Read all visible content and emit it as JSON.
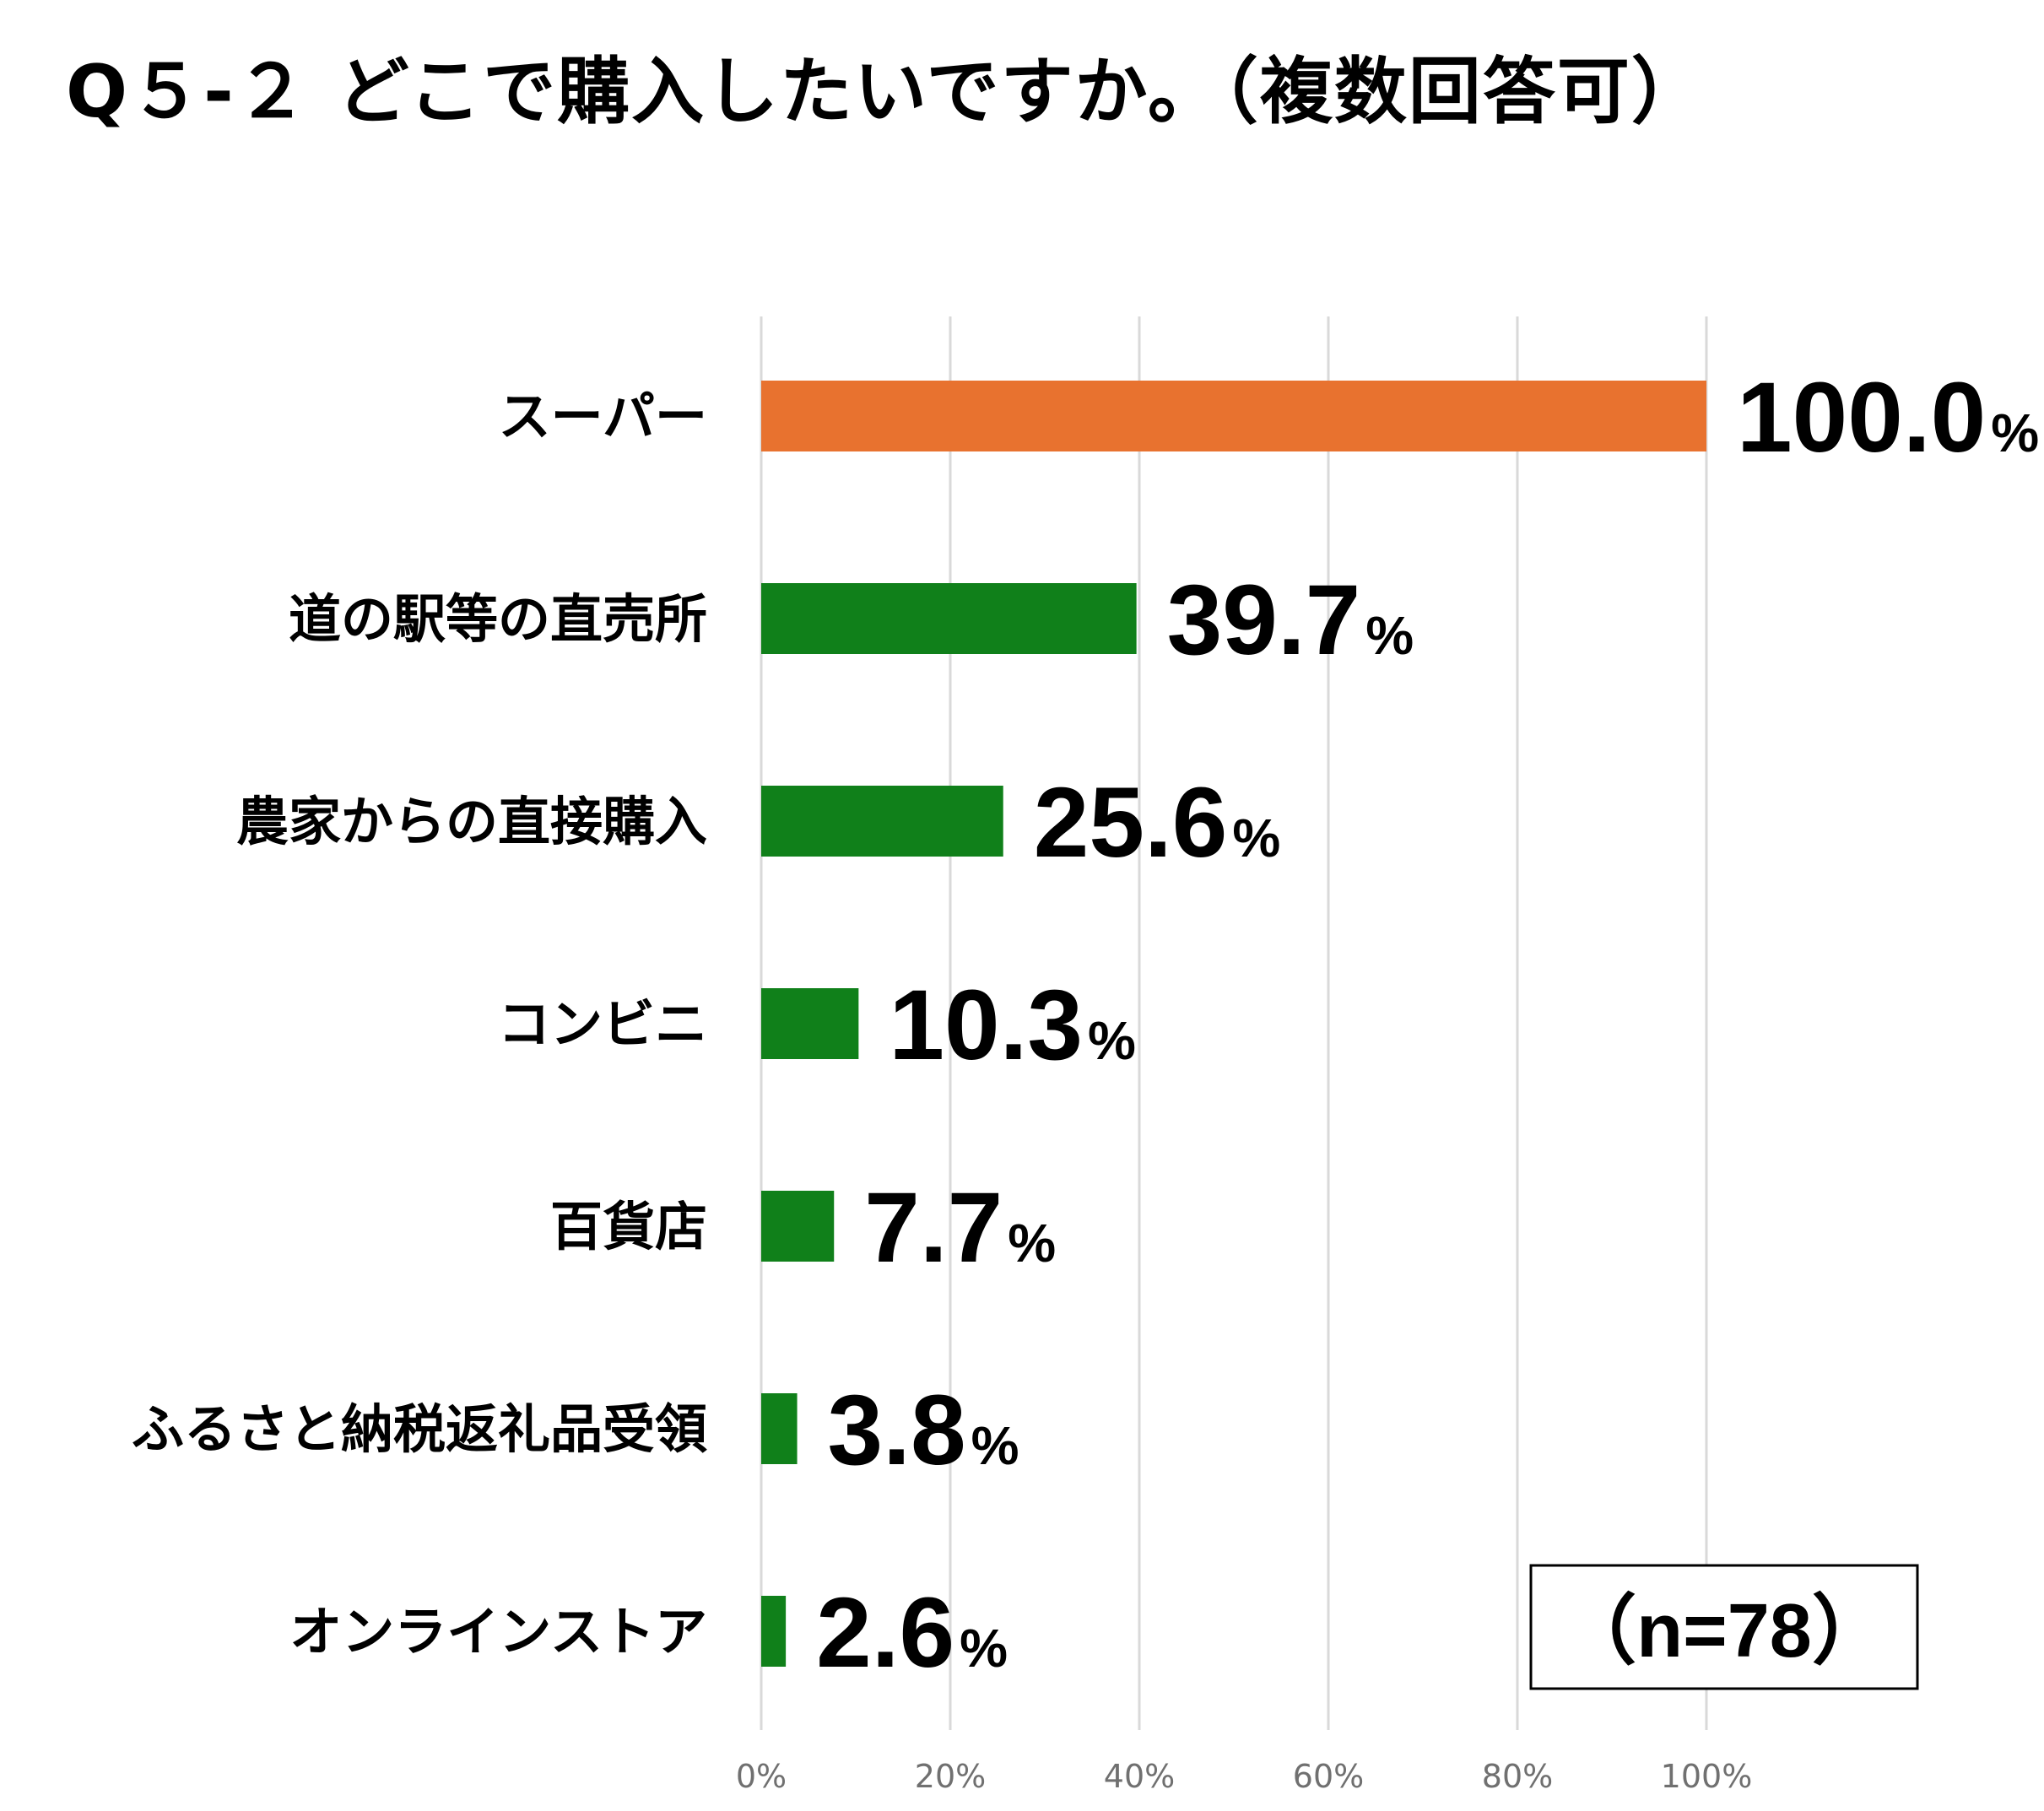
{
  "chart_data": {
    "type": "bar",
    "orientation": "horizontal",
    "title": "Q５-２ どこで購入したいですか。（複数回答可）",
    "categories": [
      "スーパー",
      "道の駅等の直売所",
      "農家からの直接購入",
      "コンビニ",
      "百貨店",
      "ふるさと納税返礼品受領",
      "オンラインストア"
    ],
    "values": [
      100.0,
      39.7,
      25.6,
      10.3,
      7.7,
      3.8,
      2.6
    ],
    "value_labels": [
      "100.0",
      "39.7",
      "25.6",
      "10.3",
      "7.7",
      "3.8",
      "2.6"
    ],
    "value_unit": "%",
    "colors": [
      "#E8722F",
      "#10801A",
      "#10801A",
      "#10801A",
      "#10801A",
      "#10801A",
      "#10801A"
    ],
    "xlim": [
      0,
      100
    ],
    "xticks": [
      0,
      20,
      40,
      60,
      80,
      100
    ],
    "xtick_labels": [
      "0%",
      "20%",
      "40%",
      "60%",
      "80%",
      "100%"
    ],
    "grid": "vertical",
    "grid_color": "#D9D9D9",
    "annotation": "（n=78）"
  }
}
